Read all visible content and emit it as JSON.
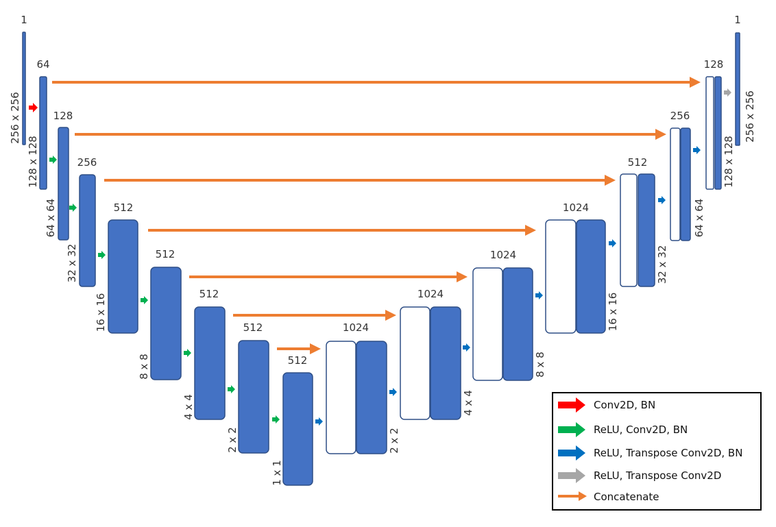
{
  "colors": {
    "block": "#4472c4",
    "block_stroke": "#2f4f86",
    "conv_bn": "#ff0000",
    "relu_conv_bn": "#00b050",
    "relu_tconv_bn": "#0070c0",
    "relu_tconv": "#a6a6a6",
    "concatenate": "#ed7d31"
  },
  "encoder": {
    "channels": [
      "1",
      "64",
      "128",
      "256",
      "512",
      "512",
      "512",
      "512",
      "512"
    ],
    "sizes": [
      "256 x 256",
      "128 x 128",
      "64 x 64",
      "32 x 32",
      "16 x 16",
      "8 x 8",
      "4 x 4",
      "2 x 2",
      "1 x 1"
    ]
  },
  "decoder": {
    "channels": [
      "1024",
      "1024",
      "1024",
      "1024",
      "512",
      "256",
      "128",
      "1"
    ],
    "sizes": [
      "2 x 2",
      "4 x 4",
      "8 x 8",
      "16 x 16",
      "32 x 32",
      "64 x 64",
      "128 x 128",
      "256 x 256"
    ]
  },
  "legend": {
    "items": [
      {
        "label": "Conv2D, BN",
        "icon": "red-arrow-icon"
      },
      {
        "label": "ReLU, Conv2D, BN",
        "icon": "green-arrow-icon"
      },
      {
        "label": "ReLU, Transpose Conv2D, BN",
        "icon": "blue-arrow-icon"
      },
      {
        "label": "ReLU, Transpose Conv2D",
        "icon": "gray-arrow-icon"
      },
      {
        "label": "Concatenate",
        "icon": "orange-arrow-icon"
      }
    ]
  }
}
